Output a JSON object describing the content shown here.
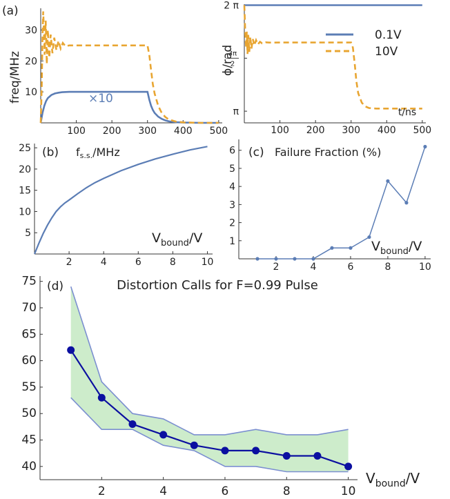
{
  "chart_data": [
    {
      "panel": "(a)",
      "type": "line",
      "ylabel": "freq/MHz",
      "xlim": [
        0,
        510
      ],
      "ylim": [
        0,
        37
      ],
      "xticks": [
        100,
        200,
        300,
        400,
        500
      ],
      "yticks": [
        10,
        20,
        30
      ],
      "annotation": "×10",
      "series": [
        {
          "name": "0.1V",
          "color": "#5b7db5",
          "dash": "solid",
          "x": [
            0,
            5,
            10,
            15,
            20,
            30,
            40,
            50,
            60,
            80,
            100,
            150,
            200,
            250,
            300,
            305,
            310,
            315,
            320,
            330,
            340,
            350,
            360,
            380,
            400,
            450,
            500
          ],
          "y": [
            0,
            3.2,
            5.5,
            7.0,
            8.0,
            9.0,
            9.5,
            9.75,
            9.9,
            10,
            10,
            10,
            10,
            10,
            10,
            7.5,
            5.5,
            4.2,
            3.2,
            2.0,
            1.3,
            0.8,
            0.5,
            0.2,
            0.1,
            0,
            0
          ]
        },
        {
          "name": "10V",
          "color": "#e8a531",
          "dash": "dashed",
          "x": [
            0,
            3,
            5,
            7,
            9,
            11,
            14,
            17,
            20,
            24,
            28,
            33,
            38,
            44,
            50,
            56,
            62,
            70,
            80,
            100,
            150,
            200,
            250,
            300,
            305,
            310,
            315,
            320,
            330,
            340,
            350,
            360,
            380,
            400,
            450,
            500
          ],
          "y": [
            0,
            12,
            28,
            36,
            30,
            22,
            33,
            19,
            30,
            21,
            28.5,
            22.5,
            27.5,
            23.5,
            26.5,
            24,
            25.8,
            24.7,
            25,
            25,
            25,
            25,
            25,
            25,
            22,
            17,
            12.5,
            9.5,
            5.5,
            3.2,
            1.9,
            1.1,
            0.4,
            0.15,
            0,
            0
          ]
        }
      ]
    },
    {
      "type": "line",
      "ylabel": "ϕ/rad",
      "xlabel": "t/ns",
      "xlim": [
        0,
        510
      ],
      "xticks": [
        100,
        200,
        300,
        400,
        500
      ],
      "ytick_labels": [
        "π",
        "3π/2",
        "2 π"
      ],
      "legend": "top-right",
      "series": [
        {
          "name": "0.1V",
          "color": "#5b7db5",
          "dash": "solid",
          "x": [
            0,
            500
          ],
          "y_over_pi": [
            2,
            2
          ]
        },
        {
          "name": "10V",
          "color": "#e8a531",
          "dash": "dashed",
          "x": [
            0,
            3,
            5,
            7,
            9,
            11,
            14,
            17,
            20,
            24,
            28,
            33,
            38,
            44,
            50,
            60,
            70,
            100,
            150,
            200,
            250,
            300,
            305,
            310,
            315,
            320,
            330,
            340,
            350,
            370,
            400,
            500
          ],
          "y_over_pi": [
            2,
            1.72,
            1.6,
            1.75,
            1.54,
            1.72,
            1.56,
            1.7,
            1.59,
            1.68,
            1.62,
            1.67,
            1.63,
            1.655,
            1.64,
            1.65,
            1.647,
            1.648,
            1.648,
            1.648,
            1.648,
            1.648,
            1.6,
            1.45,
            1.28,
            1.17,
            1.08,
            1.045,
            1.03,
            1.025,
            1.025,
            1.025
          ]
        }
      ]
    },
    {
      "panel": "(b)",
      "type": "line",
      "title": "f",
      "title_sub": "s.s.",
      "title_rest": "/MHz",
      "xlabel": "V",
      "xlabel_sub": "bound",
      "xlabel_rest": "/V",
      "xlim": [
        0,
        10.3
      ],
      "ylim": [
        0,
        26
      ],
      "xticks": [
        2,
        4,
        6,
        8,
        10
      ],
      "yticks": [
        5,
        10,
        15,
        20,
        25
      ],
      "series": [
        {
          "color": "#5b7db5",
          "x": [
            0,
            0.25,
            0.5,
            0.75,
            1,
            1.25,
            1.5,
            1.75,
            2,
            2.5,
            3,
            3.5,
            4,
            5,
            6,
            7,
            8,
            9,
            10
          ],
          "y": [
            0,
            2.5,
            4.8,
            6.8,
            8.5,
            10,
            11.1,
            12,
            12.7,
            14.2,
            15.6,
            16.8,
            17.8,
            19.6,
            21.1,
            22.4,
            23.5,
            24.5,
            25.3
          ]
        }
      ]
    },
    {
      "panel": "(c)",
      "type": "line",
      "title": "Failure Fraction (%)",
      "xlabel": "V",
      "xlabel_sub": "bound",
      "xlabel_rest": "/V",
      "xlim": [
        0,
        10.3
      ],
      "ylim": [
        0,
        6.6
      ],
      "xticks": [
        2,
        4,
        6,
        8,
        10
      ],
      "yticks": [
        1,
        2,
        3,
        4,
        5,
        6
      ],
      "series": [
        {
          "color": "#5b7db5",
          "x": [
            1,
            2,
            3,
            4,
            5,
            6,
            7,
            8,
            9,
            10
          ],
          "y": [
            0,
            0,
            0,
            0,
            0.6,
            0.6,
            1.2,
            4.3,
            3.1,
            6.2
          ]
        }
      ]
    },
    {
      "panel": "(d)",
      "type": "line",
      "title": "Distortion Calls for F=0.99 Pulse",
      "xlabel": "V",
      "xlabel_sub": "bound",
      "xlabel_rest": "/V",
      "xlim": [
        0,
        10.3
      ],
      "ylim": [
        37.5,
        76
      ],
      "xticks": [
        2,
        4,
        6,
        8,
        10
      ],
      "yticks": [
        40,
        45,
        50,
        55,
        60,
        65,
        70,
        75
      ],
      "x": [
        1,
        2,
        3,
        4,
        5,
        6,
        7,
        8,
        9,
        10
      ],
      "mean": [
        62,
        53,
        48,
        46,
        44,
        43,
        43,
        42,
        42,
        40
      ],
      "upper": [
        74,
        56,
        50,
        49,
        46,
        46,
        47,
        46,
        46,
        47
      ],
      "lower": [
        53,
        47,
        47,
        44,
        43,
        40,
        40,
        39,
        39,
        39
      ],
      "colors": {
        "line": "#0b0fa0",
        "band_fill": "#cdeccb",
        "band_edge": "#7b8fd0"
      }
    }
  ]
}
